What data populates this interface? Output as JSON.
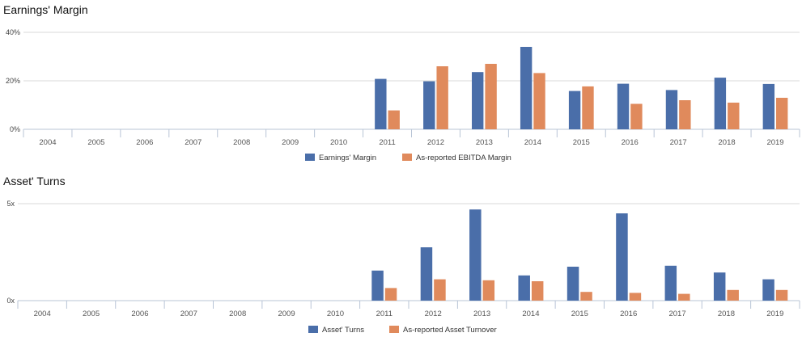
{
  "sections": [
    {
      "title": "Earnings' Margin"
    },
    {
      "title": "Asset' Turns"
    }
  ],
  "colors": {
    "series1": "#4a6ea9",
    "series2": "#e08a5c"
  },
  "chart_data": [
    {
      "type": "bar",
      "title": "Earnings' Margin",
      "categories": [
        "2004",
        "2005",
        "2006",
        "2007",
        "2008",
        "2009",
        "2010",
        "2011",
        "2012",
        "2013",
        "2014",
        "2015",
        "2016",
        "2017",
        "2018",
        "2019"
      ],
      "series": [
        {
          "name": "Earnings' Margin",
          "values": [
            null,
            null,
            null,
            null,
            null,
            null,
            null,
            20.8,
            19.8,
            23.6,
            34.0,
            15.8,
            18.8,
            16.2,
            21.3,
            18.7
          ]
        },
        {
          "name": "As-reported EBITDA Margin",
          "values": [
            null,
            null,
            null,
            null,
            null,
            null,
            null,
            7.8,
            26.0,
            27.0,
            23.2,
            17.7,
            10.5,
            12.0,
            11.0,
            13.0
          ]
        }
      ],
      "ylim": [
        0,
        40
      ],
      "yticks": [
        "0%",
        "20%",
        "40%"
      ],
      "ytick_values": [
        0,
        20,
        40
      ],
      "legend": "bottom-center",
      "grid": true
    },
    {
      "type": "bar",
      "title": "Asset' Turns",
      "categories": [
        "2004",
        "2005",
        "2006",
        "2007",
        "2008",
        "2009",
        "2010",
        "2011",
        "2012",
        "2013",
        "2014",
        "2015",
        "2016",
        "2017",
        "2018",
        "2019"
      ],
      "series": [
        {
          "name": "Asset' Turns",
          "values": [
            null,
            null,
            null,
            null,
            null,
            null,
            null,
            1.55,
            2.75,
            4.7,
            1.3,
            1.75,
            4.5,
            1.8,
            1.45,
            1.1
          ]
        },
        {
          "name": "As-reported Asset Turnover",
          "values": [
            null,
            null,
            null,
            null,
            null,
            null,
            null,
            0.65,
            1.1,
            1.05,
            1.0,
            0.45,
            0.4,
            0.35,
            0.55,
            0.55
          ]
        }
      ],
      "ylim": [
        0,
        5
      ],
      "yticks": [
        "0x",
        "5x"
      ],
      "ytick_values": [
        0,
        5
      ],
      "legend": "bottom-center",
      "grid": true
    }
  ]
}
